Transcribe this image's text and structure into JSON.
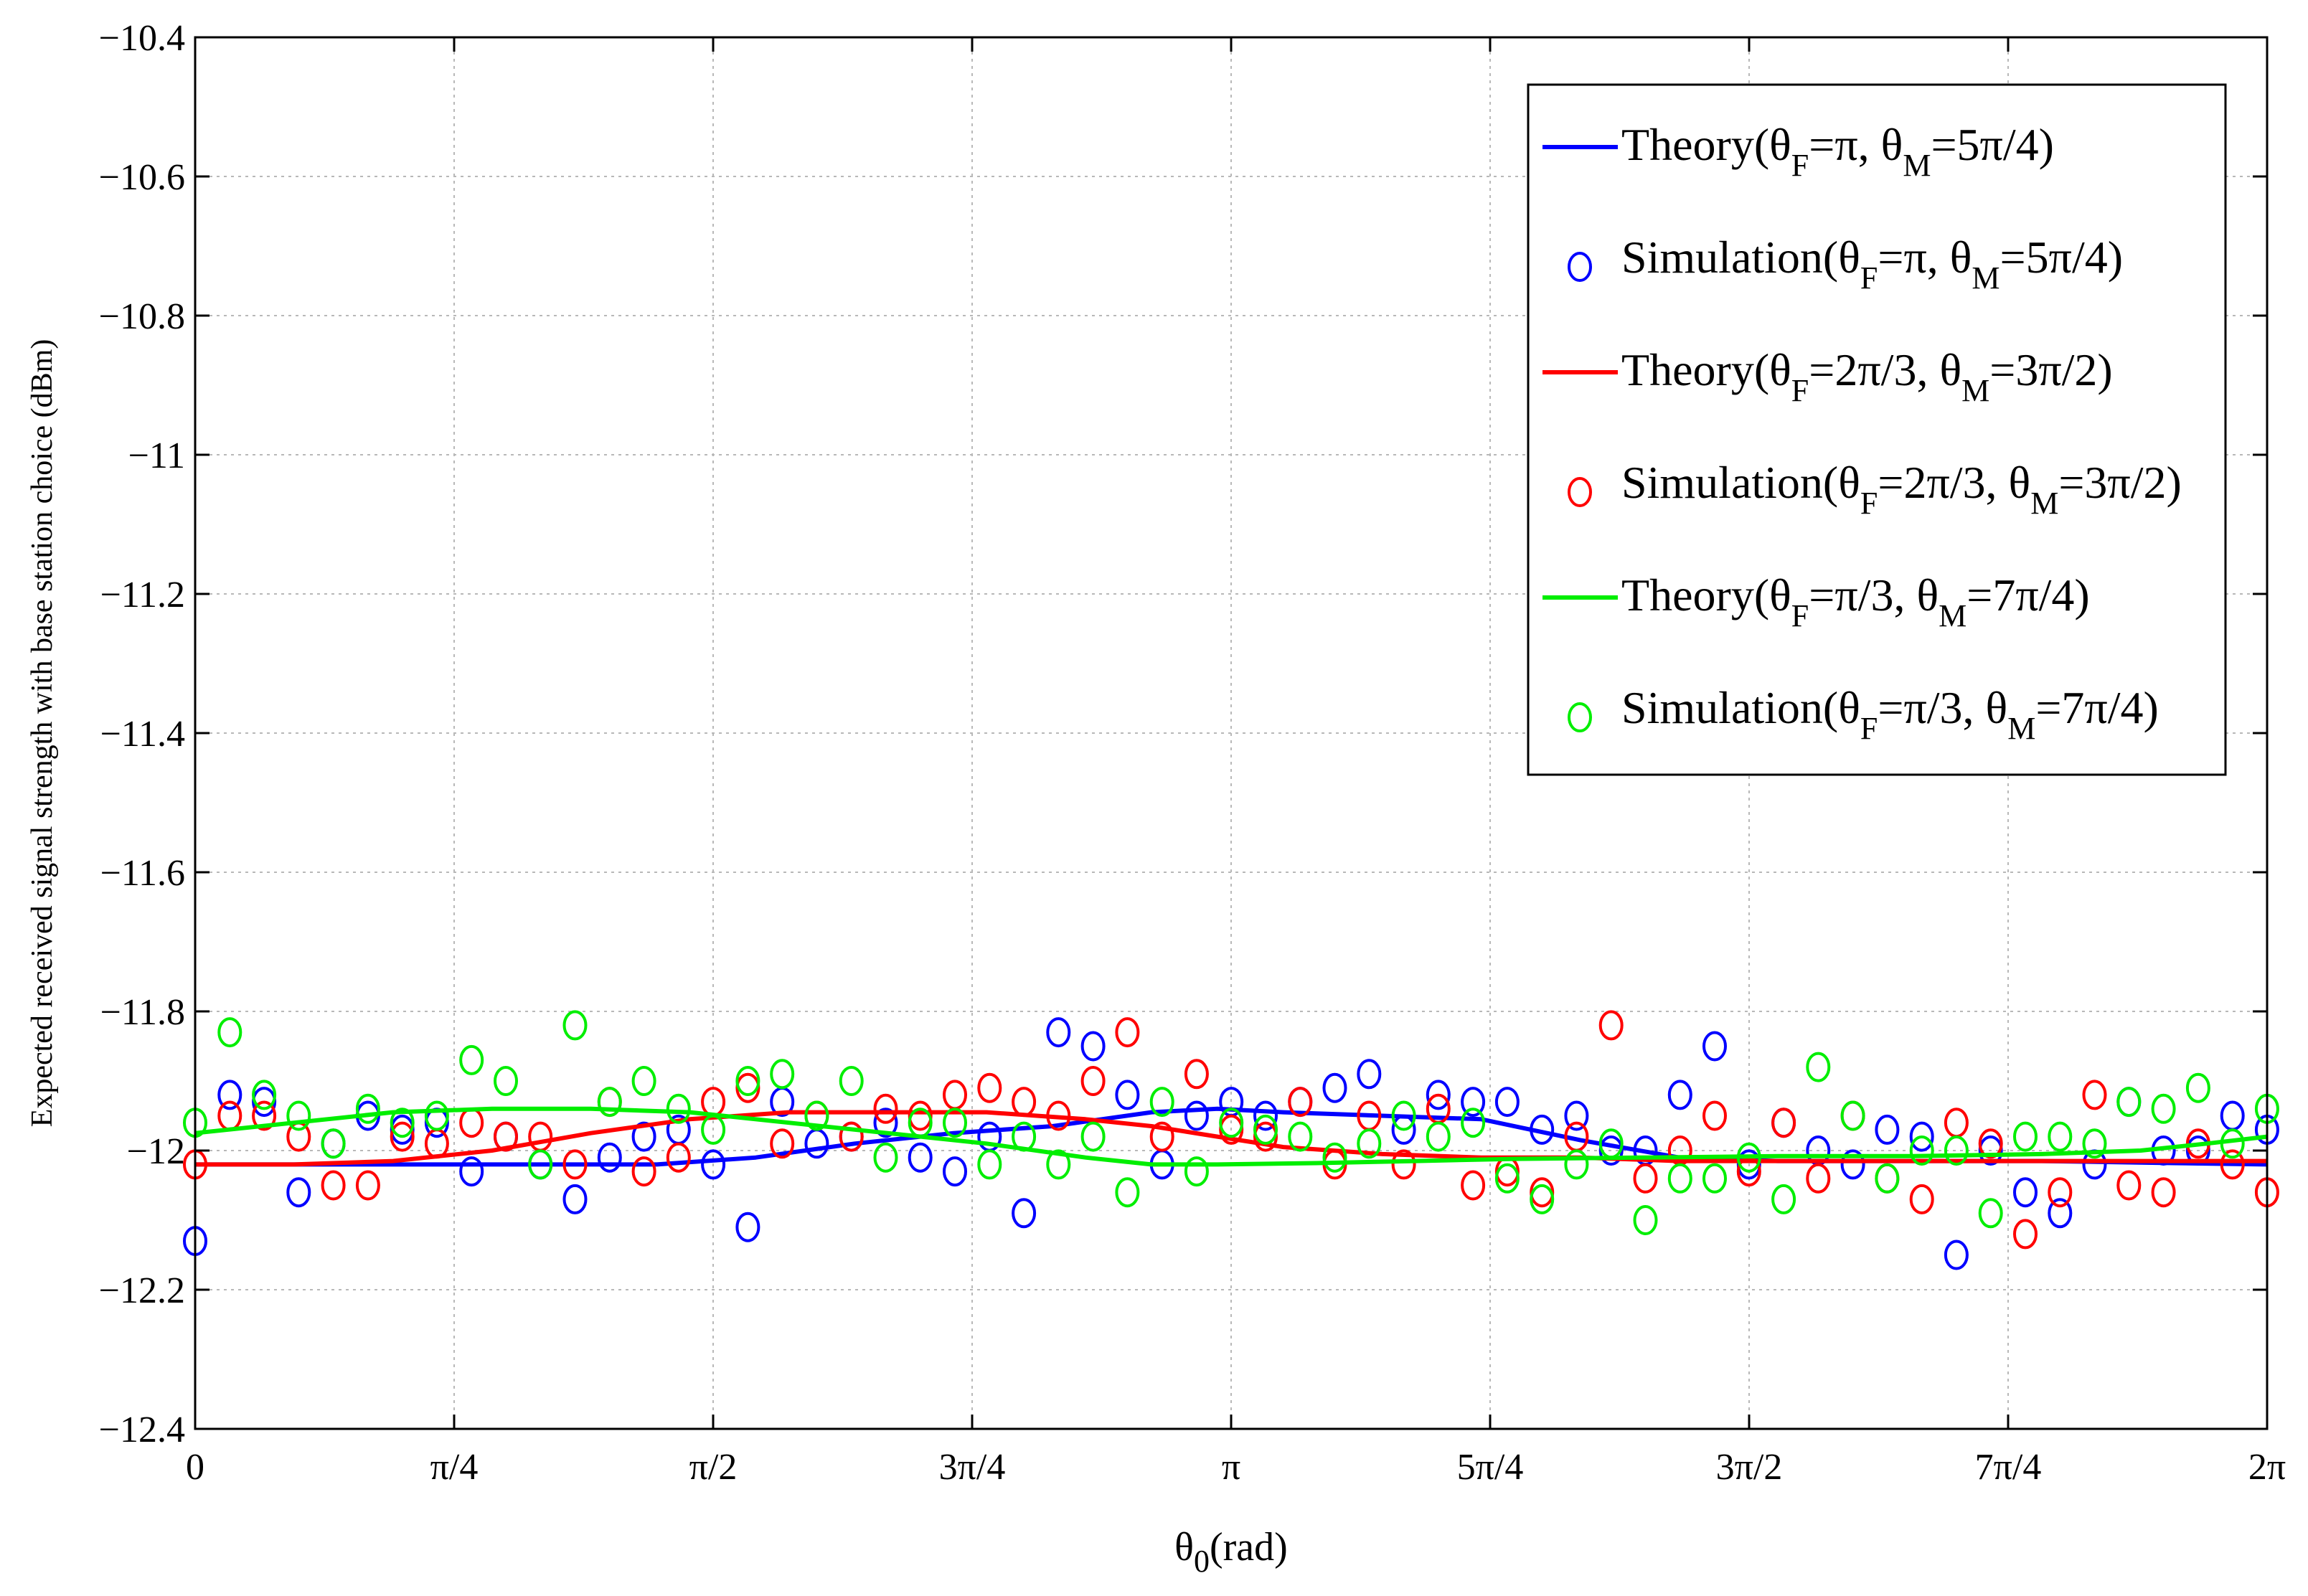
{
  "chart_data": {
    "type": "line",
    "title": "",
    "xlabel": "θ0(rad)",
    "xlabel_parts": [
      "θ",
      "0",
      "(rad)"
    ],
    "ylabel": "Expected received signal strength with base station choice (dBm)",
    "xlim": [
      0,
      6.283185
    ],
    "ylim": [
      -12.4,
      -10.4
    ],
    "grid": true,
    "legend_position": "top-right",
    "x_ticks": [
      {
        "value": 0,
        "label": "0"
      },
      {
        "value": 0.785398,
        "label": "π/4"
      },
      {
        "value": 1.570796,
        "label": "π/2"
      },
      {
        "value": 2.356194,
        "label": "3π/4"
      },
      {
        "value": 3.141593,
        "label": "π"
      },
      {
        "value": 3.926991,
        "label": "5π/4"
      },
      {
        "value": 4.712389,
        "label": "3π/2"
      },
      {
        "value": 5.497787,
        "label": "7π/4"
      },
      {
        "value": 6.283185,
        "label": "2π"
      }
    ],
    "y_ticks": [
      {
        "value": -10.4,
        "label": "−10.4"
      },
      {
        "value": -10.6,
        "label": "−10.6"
      },
      {
        "value": -10.8,
        "label": "−10.8"
      },
      {
        "value": -11,
        "label": "−11"
      },
      {
        "value": -11.2,
        "label": "−11.2"
      },
      {
        "value": -11.4,
        "label": "−11.4"
      },
      {
        "value": -11.6,
        "label": "−11.6"
      },
      {
        "value": -11.8,
        "label": "−11.8"
      },
      {
        "value": -12,
        "label": "−12"
      },
      {
        "value": -12.2,
        "label": "−12.2"
      },
      {
        "value": -12.4,
        "label": "−12.4"
      }
    ],
    "series": [
      {
        "name": "Theory(θF=π, θM=5π/4)",
        "legend_parts": [
          "Theory(θ",
          "F",
          "=π, θ",
          "M",
          "=5π/4)"
        ],
        "kind": "line",
        "color": "#0000ff",
        "x": [
          0,
          0.5,
          1.0,
          1.4,
          1.7,
          2.0,
          2.3,
          2.6,
          2.9,
          3.1,
          3.3,
          3.6,
          3.9,
          4.2,
          4.5,
          4.8,
          5.2,
          5.6,
          6.0,
          6.283185
        ],
        "y": [
          -12.02,
          -12.02,
          -12.02,
          -12.02,
          -12.01,
          -11.99,
          -11.975,
          -11.965,
          -11.945,
          -11.94,
          -11.945,
          -11.95,
          -11.955,
          -11.985,
          -12.01,
          -12.015,
          -12.015,
          -12.015,
          -12.018,
          -12.02
        ]
      },
      {
        "name": "Simulation(θF=π, θM=5π/4)",
        "legend_parts": [
          "Simulation(θ",
          "F",
          "=π, θ",
          "M",
          "=5π/4)"
        ],
        "kind": "scatter",
        "color": "#0000ff",
        "x": [
          0,
          0.105,
          0.209,
          0.314,
          0.419,
          0.524,
          0.628,
          0.733,
          0.838,
          0.942,
          1.047,
          1.152,
          1.257,
          1.361,
          1.466,
          1.571,
          1.676,
          1.78,
          1.885,
          1.99,
          2.094,
          2.199,
          2.304,
          2.409,
          2.513,
          2.618,
          2.723,
          2.827,
          2.932,
          3.037,
          3.142,
          3.246,
          3.351,
          3.456,
          3.56,
          3.665,
          3.77,
          3.875,
          3.979,
          4.084,
          4.189,
          4.294,
          4.398,
          4.503,
          4.608,
          4.712,
          4.817,
          4.922,
          5.027,
          5.131,
          5.236,
          5.341,
          5.445,
          5.55,
          5.655,
          5.76,
          5.864,
          5.969,
          6.074,
          6.178,
          6.283
        ],
        "y": [
          -12.13,
          -11.92,
          -11.93,
          -12.06,
          -11.99,
          -11.95,
          -11.97,
          -11.96,
          -12.03,
          -11.98,
          -12.02,
          -12.07,
          -12.01,
          -11.98,
          -11.97,
          -12.02,
          -12.11,
          -11.93,
          -11.99,
          -11.98,
          -11.96,
          -12.01,
          -12.03,
          -11.98,
          -12.09,
          -11.83,
          -11.85,
          -11.92,
          -12.02,
          -11.95,
          -11.93,
          -11.95,
          -11.93,
          -11.91,
          -11.89,
          -11.97,
          -11.92,
          -11.93,
          -11.93,
          -11.97,
          -11.95,
          -12.0,
          -12.0,
          -11.92,
          -11.85,
          -12.02,
          -11.96,
          -12.0,
          -12.02,
          -11.97,
          -11.98,
          -12.15,
          -12.0,
          -12.06,
          -12.09,
          -12.02,
          -11.93,
          -12.0,
          -12.0,
          -11.95,
          -11.97
        ]
      },
      {
        "name": "Theory(θF=2π/3, θM=3π/2)",
        "legend_parts": [
          "Theory(θ",
          "F",
          "=2π/3, θ",
          "M",
          "=3π/2)"
        ],
        "kind": "line",
        "color": "#ff0000",
        "x": [
          0,
          0.3,
          0.6,
          0.9,
          1.2,
          1.5,
          1.8,
          2.1,
          2.4,
          2.7,
          2.9,
          3.1,
          3.3,
          3.6,
          3.9,
          4.2,
          4.5,
          4.8,
          5.1,
          5.5,
          5.9,
          6.283185
        ],
        "y": [
          -12.02,
          -12.02,
          -12.015,
          -12.0,
          -11.975,
          -11.955,
          -11.945,
          -11.945,
          -11.945,
          -11.955,
          -11.965,
          -11.98,
          -11.995,
          -12.005,
          -12.01,
          -12.01,
          -12.015,
          -12.015,
          -12.015,
          -12.015,
          -12.015,
          -12.015
        ]
      },
      {
        "name": "Simulation(θF=2π/3, θM=3π/2)",
        "legend_parts": [
          "Simulation(θ",
          "F",
          "=2π/3, θ",
          "M",
          "=3π/2)"
        ],
        "kind": "scatter",
        "color": "#ff0000",
        "x": [
          0,
          0.105,
          0.209,
          0.314,
          0.419,
          0.524,
          0.628,
          0.733,
          0.838,
          0.942,
          1.047,
          1.152,
          1.257,
          1.361,
          1.466,
          1.571,
          1.676,
          1.78,
          1.885,
          1.99,
          2.094,
          2.199,
          2.304,
          2.409,
          2.513,
          2.618,
          2.723,
          2.827,
          2.932,
          3.037,
          3.142,
          3.246,
          3.351,
          3.456,
          3.56,
          3.665,
          3.77,
          3.875,
          3.979,
          4.084,
          4.189,
          4.294,
          4.398,
          4.503,
          4.608,
          4.712,
          4.817,
          4.922,
          5.027,
          5.131,
          5.236,
          5.341,
          5.445,
          5.55,
          5.655,
          5.76,
          5.864,
          5.969,
          6.074,
          6.178,
          6.283
        ],
        "y": [
          -12.02,
          -11.95,
          -11.95,
          -11.98,
          -12.05,
          -12.05,
          -11.98,
          -11.99,
          -11.96,
          -11.98,
          -11.98,
          -12.02,
          -11.93,
          -12.03,
          -12.01,
          -11.93,
          -11.91,
          -11.99,
          -11.95,
          -11.98,
          -11.94,
          -11.95,
          -11.92,
          -11.91,
          -11.93,
          -11.95,
          -11.9,
          -11.83,
          -11.98,
          -11.89,
          -11.97,
          -11.98,
          -11.93,
          -12.02,
          -11.95,
          -12.02,
          -11.94,
          -12.05,
          -12.03,
          -12.06,
          -11.98,
          -11.82,
          -12.04,
          -12.0,
          -11.95,
          -12.03,
          -11.96,
          -12.04,
          -11.95,
          -12.04,
          -12.07,
          -11.96,
          -11.99,
          -12.12,
          -12.06,
          -11.92,
          -12.05,
          -12.06,
          -11.99,
          -12.02,
          -12.06
        ]
      },
      {
        "name": "Theory(θF=π/3, θM=7π/4)",
        "legend_parts": [
          "Theory(θ",
          "F",
          "=π/3, θ",
          "M",
          "=7π/4)"
        ],
        "kind": "line",
        "color": "#00ee00",
        "x": [
          0,
          0.3,
          0.6,
          0.9,
          1.2,
          1.5,
          1.8,
          2.1,
          2.4,
          2.7,
          2.9,
          3.1,
          3.4,
          3.7,
          4.0,
          4.4,
          4.8,
          5.2,
          5.6,
          5.9,
          6.1,
          6.283185
        ],
        "y": [
          -11.975,
          -11.96,
          -11.945,
          -11.94,
          -11.94,
          -11.945,
          -11.96,
          -11.975,
          -11.99,
          -12.01,
          -12.02,
          -12.02,
          -12.018,
          -12.015,
          -12.012,
          -12.01,
          -12.008,
          -12.008,
          -12.005,
          -12.0,
          -11.99,
          -11.98
        ]
      },
      {
        "name": "Simulation(θF=π/3, θM=7π/4)",
        "legend_parts": [
          "Simulation(θ",
          "F",
          "=π/3, θ",
          "M",
          "=7π/4)"
        ],
        "kind": "scatter",
        "color": "#00ee00",
        "x": [
          0,
          0.105,
          0.209,
          0.314,
          0.419,
          0.524,
          0.628,
          0.733,
          0.838,
          0.942,
          1.047,
          1.152,
          1.257,
          1.361,
          1.466,
          1.571,
          1.676,
          1.78,
          1.885,
          1.99,
          2.094,
          2.199,
          2.304,
          2.409,
          2.513,
          2.618,
          2.723,
          2.827,
          2.932,
          3.037,
          3.142,
          3.246,
          3.351,
          3.456,
          3.56,
          3.665,
          3.77,
          3.875,
          3.979,
          4.084,
          4.189,
          4.294,
          4.398,
          4.503,
          4.608,
          4.712,
          4.817,
          4.922,
          5.027,
          5.131,
          5.236,
          5.341,
          5.445,
          5.55,
          5.655,
          5.76,
          5.864,
          5.969,
          6.074,
          6.178,
          6.283
        ],
        "y": [
          -11.96,
          -11.83,
          -11.92,
          -11.95,
          -11.99,
          -11.94,
          -11.96,
          -11.95,
          -11.87,
          -11.9,
          -12.02,
          -11.82,
          -11.93,
          -11.9,
          -11.94,
          -11.97,
          -11.9,
          -11.89,
          -11.95,
          -11.9,
          -12.01,
          -11.96,
          -11.96,
          -12.02,
          -11.98,
          -12.02,
          -11.98,
          -12.06,
          -11.93,
          -12.03,
          -11.96,
          -11.97,
          -11.98,
          -12.01,
          -11.99,
          -11.95,
          -11.98,
          -11.96,
          -12.04,
          -12.07,
          -12.02,
          -11.99,
          -12.1,
          -12.04,
          -12.04,
          -12.01,
          -12.07,
          -11.88,
          -11.95,
          -12.04,
          -12.0,
          -12.0,
          -12.09,
          -11.98,
          -11.98,
          -11.99,
          -11.93,
          -11.94,
          -11.91,
          -11.99,
          -11.94
        ]
      }
    ]
  }
}
